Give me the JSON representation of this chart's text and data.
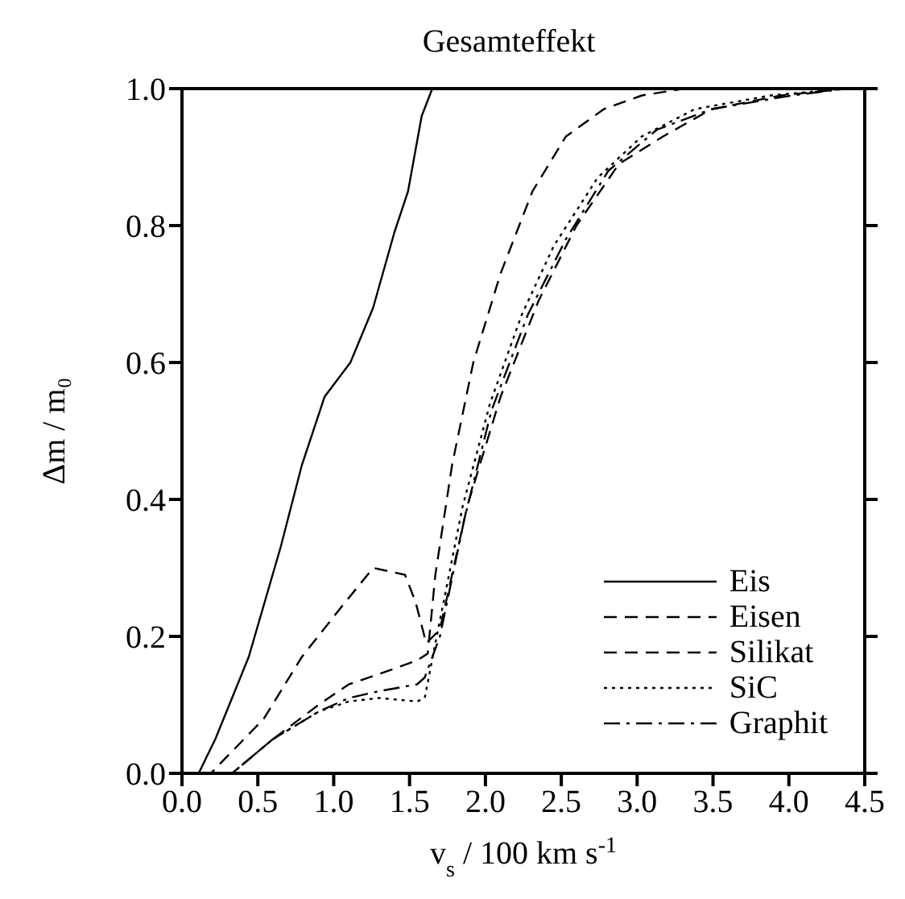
{
  "chart_data": {
    "type": "line",
    "title": "Gesamteffekt",
    "xlabel": "v$_{s}$ / 100 km s$^{-1}$",
    "ylabel": "Δm / m₀",
    "xlim": [
      0,
      4.5
    ],
    "ylim": [
      0,
      1
    ],
    "xticks": [
      {
        "value": 0,
        "label": "0.0"
      },
      0.5,
      {
        "value": 1,
        "label": "1.0"
      },
      1.5,
      {
        "value": 2,
        "label": "2.0"
      },
      2.5,
      {
        "value": 3,
        "label": "3.0"
      },
      3.5,
      {
        "value": 4,
        "label": "4.0"
      },
      4.5
    ],
    "yticks": [
      {
        "value": 0,
        "label": "0.0"
      },
      0.2,
      0.4,
      0.6,
      0.8,
      {
        "value": 1,
        "label": "1.0"
      }
    ],
    "legend": "bottom right",
    "marker": "none",
    "series": [
      {
        "name": "Eis",
        "color": "#000000",
        "line_style": "solid",
        "x": [
          0,
          0.11,
          0.22,
          0.44,
          0.65,
          0.79,
          0.94,
          1.11,
          1.26,
          1.4,
          1.49,
          1.58,
          1.65,
          2.5,
          3.5,
          4.5
        ],
        "values": [
          0,
          0,
          0.05,
          0.17,
          0.33,
          0.45,
          0.55,
          0.6,
          0.68,
          0.79,
          0.85,
          0.96,
          1,
          1,
          1,
          1
        ]
      },
      {
        "name": "Eisen",
        "color": "#000000",
        "line_style": "dashed",
        "x": [
          0,
          0.19,
          0.54,
          0.79,
          1.04,
          1.26,
          1.47,
          1.54,
          1.61,
          1.7,
          1.88,
          2.1,
          2.35,
          2.6,
          2.88,
          3.17,
          3.49,
          3.95,
          4.38,
          4.5
        ],
        "values": [
          0,
          0,
          0.08,
          0.17,
          0.24,
          0.3,
          0.29,
          0.25,
          0.19,
          0.21,
          0.39,
          0.55,
          0.69,
          0.8,
          0.89,
          0.93,
          0.97,
          0.99,
          1,
          1
        ]
      },
      {
        "name": "Silikat",
        "color": "#000000",
        "line_style": "dashed",
        "x": [
          0,
          0.33,
          0.6,
          0.9,
          1.1,
          1.3,
          1.55,
          1.62,
          1.67,
          1.78,
          1.92,
          2.1,
          2.31,
          2.53,
          2.78,
          3.03,
          3.31,
          4.5
        ],
        "values": [
          0,
          0,
          0.05,
          0.1,
          0.13,
          0.145,
          0.165,
          0.175,
          0.29,
          0.45,
          0.6,
          0.73,
          0.85,
          0.93,
          0.97,
          0.99,
          1,
          1
        ]
      },
      {
        "name": "SiC",
        "color": "#000000",
        "line_style": "dotted",
        "x": [
          0,
          0.33,
          0.6,
          0.9,
          1.1,
          1.3,
          1.55,
          1.6,
          1.67,
          1.85,
          2.03,
          2.24,
          2.45,
          2.74,
          3.03,
          3.38,
          3.88,
          4.38,
          4.5
        ],
        "values": [
          0,
          0,
          0.05,
          0.09,
          0.105,
          0.11,
          0.105,
          0.11,
          0.19,
          0.39,
          0.54,
          0.67,
          0.77,
          0.87,
          0.93,
          0.97,
          0.99,
          1,
          1
        ]
      },
      {
        "name": "Graphit",
        "color": "#000000",
        "line_style": "dashdot",
        "x": [
          0,
          0.33,
          0.6,
          0.9,
          1.1,
          1.3,
          1.55,
          1.6,
          1.7,
          1.86,
          2.04,
          2.28,
          2.53,
          2.81,
          3.13,
          3.49,
          4.02,
          4.38,
          4.5
        ],
        "values": [
          0,
          0,
          0.05,
          0.09,
          0.11,
          0.12,
          0.13,
          0.14,
          0.2,
          0.37,
          0.53,
          0.67,
          0.78,
          0.88,
          0.94,
          0.97,
          0.99,
          1,
          1
        ]
      }
    ]
  }
}
